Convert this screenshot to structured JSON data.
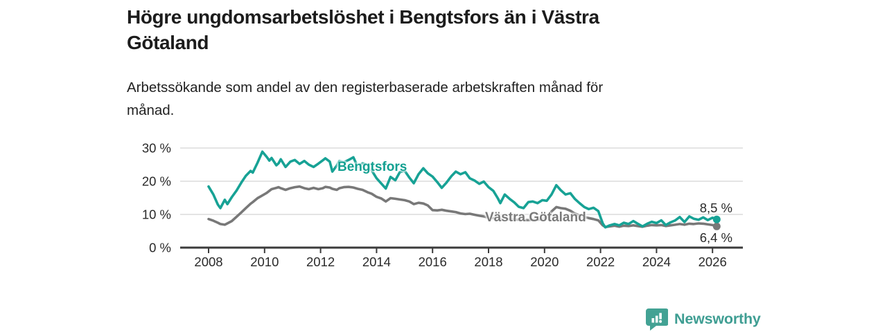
{
  "header": {
    "title_lines": [
      "Högre ungdomsarbetslöshet i Bengtsfors än i Västra",
      "Götaland"
    ],
    "subtitle_lines": [
      "Arbetssökande som andel av den registerbaserade arbetskraften månad för",
      "månad."
    ]
  },
  "chart_data": {
    "type": "line",
    "xlabel": "",
    "ylabel": "",
    "grid": "horizontal",
    "legend_position": "inline-labels",
    "xlim": [
      2006.95,
      2027.08
    ],
    "ylim": [
      0,
      32
    ],
    "x_ticks": [
      2008,
      2010,
      2012,
      2014,
      2016,
      2018,
      2020,
      2022,
      2024,
      2026
    ],
    "y_ticks": [
      {
        "value": 0,
        "label": "0 %"
      },
      {
        "value": 10,
        "label": "10 %"
      },
      {
        "value": 20,
        "label": "20 %"
      },
      {
        "value": 30,
        "label": "30 %"
      }
    ],
    "x": [
      2008.0,
      2008.17,
      2008.33,
      2008.42,
      2008.58,
      2008.67,
      2008.83,
      2009.0,
      2009.17,
      2009.33,
      2009.5,
      2009.58,
      2009.75,
      2009.92,
      2010.08,
      2010.17,
      2010.25,
      2010.42,
      2010.5,
      2010.58,
      2010.75,
      2010.92,
      2011.08,
      2011.25,
      2011.42,
      2011.58,
      2011.75,
      2011.92,
      2012.08,
      2012.17,
      2012.33,
      2012.42,
      2012.58,
      2012.67,
      2012.83,
      2013.0,
      2013.17,
      2013.33,
      2013.5,
      2013.67,
      2013.83,
      2014.0,
      2014.17,
      2014.33,
      2014.5,
      2014.67,
      2014.83,
      2015.0,
      2015.17,
      2015.33,
      2015.5,
      2015.67,
      2015.83,
      2016.0,
      2016.17,
      2016.33,
      2016.5,
      2016.67,
      2016.83,
      2017.0,
      2017.17,
      2017.33,
      2017.5,
      2017.67,
      2017.83,
      2018.0,
      2018.17,
      2018.33,
      2018.42,
      2018.58,
      2018.75,
      2018.92,
      2019.08,
      2019.25,
      2019.42,
      2019.58,
      2019.75,
      2019.92,
      2020.08,
      2020.25,
      2020.42,
      2020.58,
      2020.75,
      2020.92,
      2021.08,
      2021.25,
      2021.42,
      2021.58,
      2021.75,
      2021.92,
      2022.08,
      2022.17,
      2022.33,
      2022.5,
      2022.67,
      2022.83,
      2023.0,
      2023.17,
      2023.33,
      2023.5,
      2023.67,
      2023.83,
      2024.0,
      2024.17,
      2024.33,
      2024.5,
      2024.67,
      2024.83,
      2025.0,
      2025.17,
      2025.33,
      2025.5,
      2025.67,
      2025.83,
      2026.0,
      2026.15
    ],
    "series": [
      {
        "name": "Västra Götaland",
        "color": "#787878",
        "end_label": "6,4 %",
        "values": [
          8.6,
          8.1,
          7.5,
          7.1,
          6.9,
          7.3,
          8.0,
          9.3,
          10.6,
          11.9,
          13.2,
          13.7,
          14.9,
          15.7,
          16.5,
          17.1,
          17.6,
          18.0,
          18.2,
          17.9,
          17.4,
          17.9,
          18.2,
          18.4,
          17.9,
          17.6,
          18.0,
          17.6,
          17.9,
          18.3,
          18.1,
          17.7,
          17.4,
          17.9,
          18.2,
          18.3,
          18.1,
          17.7,
          17.4,
          16.7,
          16.2,
          15.3,
          14.8,
          13.9,
          14.9,
          14.7,
          14.5,
          14.3,
          13.9,
          13.1,
          13.5,
          13.3,
          12.7,
          11.3,
          11.2,
          11.4,
          11.1,
          10.9,
          10.7,
          10.3,
          10.1,
          10.2,
          9.9,
          9.6,
          9.4,
          9.0,
          8.9,
          8.7,
          8.6,
          8.5,
          8.6,
          8.5,
          8.4,
          8.3,
          8.3,
          8.4,
          8.4,
          8.6,
          9.0,
          10.9,
          12.2,
          11.9,
          11.7,
          11.1,
          10.3,
          9.7,
          9.2,
          8.9,
          8.6,
          8.2,
          6.7,
          6.2,
          6.4,
          6.6,
          6.3,
          6.6,
          6.5,
          6.7,
          6.5,
          6.3,
          6.6,
          6.8,
          6.7,
          6.8,
          6.5,
          6.7,
          6.9,
          7.1,
          6.9,
          7.2,
          7.1,
          7.3,
          7.2,
          7.0,
          6.8,
          6.4
        ]
      },
      {
        "name": "Bengtsfors",
        "color": "#17a295",
        "end_label": "8,5 %",
        "values": [
          18.4,
          16.0,
          13.0,
          11.9,
          14.4,
          13.1,
          15.2,
          17.2,
          19.6,
          21.6,
          23.1,
          22.6,
          25.6,
          28.9,
          27.3,
          26.2,
          27.0,
          24.8,
          25.4,
          26.6,
          24.3,
          25.9,
          26.4,
          25.2,
          26.1,
          25.0,
          24.3,
          25.3,
          26.3,
          26.9,
          25.9,
          22.9,
          24.7,
          26.1,
          25.7,
          26.4,
          27.2,
          24.3,
          25.4,
          24.9,
          23.2,
          20.9,
          19.3,
          17.8,
          21.3,
          20.3,
          22.7,
          23.2,
          21.1,
          19.4,
          22.1,
          23.9,
          22.4,
          21.4,
          19.7,
          18.0,
          19.6,
          21.5,
          22.9,
          22.1,
          22.7,
          20.9,
          20.2,
          19.2,
          19.9,
          18.2,
          17.1,
          14.9,
          13.4,
          16.0,
          14.7,
          13.6,
          12.3,
          11.9,
          13.7,
          13.9,
          13.4,
          14.3,
          14.1,
          16.0,
          18.8,
          17.3,
          16.0,
          16.4,
          14.7,
          13.4,
          12.2,
          11.6,
          12.0,
          11.0,
          7.3,
          6.1,
          6.7,
          7.1,
          6.7,
          7.5,
          7.1,
          8.0,
          7.2,
          6.4,
          7.2,
          7.8,
          7.4,
          8.2,
          6.8,
          7.6,
          8.2,
          9.2,
          7.7,
          9.4,
          8.7,
          8.4,
          9.1,
          8.3,
          9.0,
          8.5
        ]
      }
    ]
  },
  "footer": {
    "brand": "Newsworthy"
  },
  "palette": {
    "grid": "#dcdcdc",
    "axis": "#3b3b3b",
    "tick_label": "#2a2a2a"
  }
}
